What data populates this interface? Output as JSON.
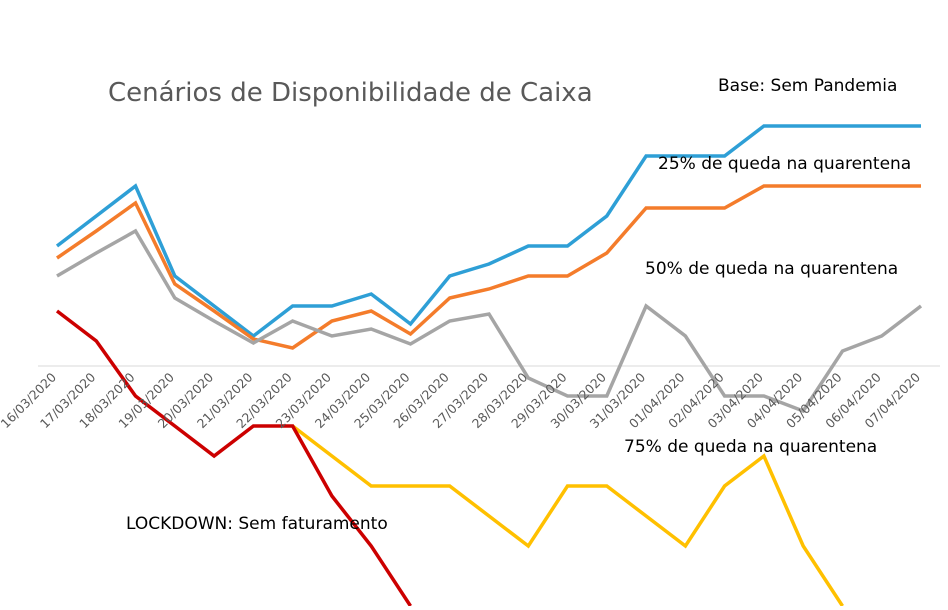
{
  "chart_data": {
    "type": "line",
    "title": "Cenários de Disponibilidade de Caixa",
    "categories": [
      "16/03/2020",
      "17/03/2020",
      "18/03/2020",
      "19/03/2020",
      "20/03/2020",
      "21/03/2020",
      "22/03/2020",
      "23/03/2020",
      "24/03/2020",
      "25/03/2020",
      "26/03/2020",
      "27/03/2020",
      "28/03/2020",
      "29/03/2020",
      "30/03/2020",
      "31/03/2020",
      "01/04/2020",
      "02/04/2020",
      "03/04/2020",
      "04/04/2020",
      "05/04/2020",
      "06/04/2020",
      "07/04/2020"
    ],
    "ylim": [
      -240,
      305
    ],
    "grid": false,
    "legend": "none",
    "series": [
      {
        "name": "Base: Sem Pandemia",
        "color": "#2E9FD6",
        "values": [
          120,
          150,
          180,
          90,
          60,
          30,
          60,
          60,
          72,
          42,
          90,
          102,
          120,
          120,
          150,
          210,
          210,
          210,
          240,
          240,
          240,
          240,
          240
        ]
      },
      {
        "name": "25% de queda na quarentena",
        "color": "#F47C2B",
        "values": [
          108,
          135,
          163,
          82,
          55,
          27,
          18,
          45,
          55,
          32,
          68,
          77,
          90,
          90,
          113,
          158,
          158,
          158,
          180,
          180,
          180,
          180,
          180
        ]
      },
      {
        "name": "50% de queda na quarentena",
        "color": "#A5A5A5",
        "values": [
          90,
          113,
          135,
          68,
          45,
          23,
          45,
          30,
          37,
          22,
          45,
          52,
          -12,
          -30,
          -30,
          60,
          30,
          -30,
          -30,
          -45,
          15,
          30,
          60
        ]
      },
      {
        "name": "75% de queda na quarentena",
        "color": "#FFC000",
        "values": [
          null,
          null,
          null,
          null,
          null,
          null,
          -60,
          -90,
          -120,
          -120,
          -120,
          -150,
          -180,
          -120,
          -120,
          -150,
          -180,
          -120,
          -90,
          -180,
          -240,
          null,
          null
        ]
      },
      {
        "name": "LOCKDOWN: Sem faturamento",
        "color": "#CC0000",
        "values": [
          55,
          25,
          -30,
          -60,
          -90,
          -60,
          -60,
          -130,
          -180,
          -240,
          null,
          null,
          null,
          null,
          null,
          null,
          null,
          null,
          null,
          null,
          null,
          null,
          null
        ]
      }
    ]
  }
}
